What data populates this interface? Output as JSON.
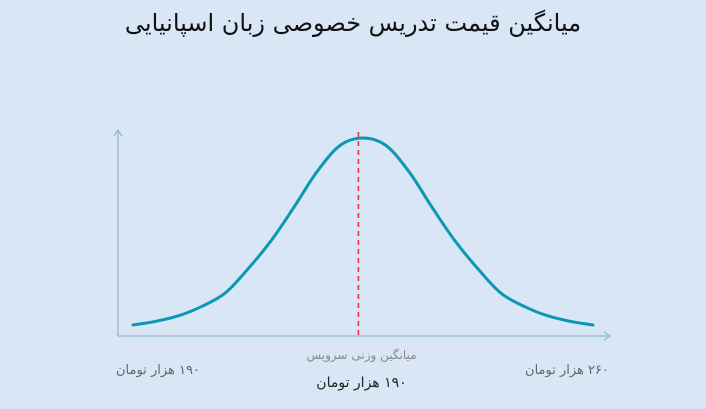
{
  "title": "میانگین قیمت تدریس خصوصی زبان اسپانیایی",
  "chart_data": {
    "type": "line",
    "title": "میانگین قیمت تدریس خصوصی زبان اسپانیایی",
    "xlabel": "",
    "ylabel": "",
    "min_label": "۱۹۰ هزار تومان",
    "max_label": "۲۶۰ هزار تومان",
    "mean_label": "میانگین وزنی سرویس",
    "mean_value_label": "۱۹۰ هزار تومان",
    "x": [
      0,
      0.05,
      0.1,
      0.15,
      0.2,
      0.25,
      0.3,
      0.35,
      0.4,
      0.45,
      0.5,
      0.55,
      0.6,
      0.65,
      0.7,
      0.75,
      0.8,
      0.85,
      0.9,
      0.95,
      1.0
    ],
    "values": [
      0.0,
      0.02,
      0.05,
      0.1,
      0.17,
      0.3,
      0.45,
      0.63,
      0.82,
      0.96,
      1.0,
      0.96,
      0.82,
      0.63,
      0.45,
      0.3,
      0.17,
      0.1,
      0.05,
      0.02,
      0.0
    ],
    "mean_position": 0.49,
    "colors": {
      "curve": "#0a98b5",
      "mean_line": "#e8314f",
      "axis": "#8fb9c7"
    },
    "grid": false,
    "legend": "none"
  }
}
